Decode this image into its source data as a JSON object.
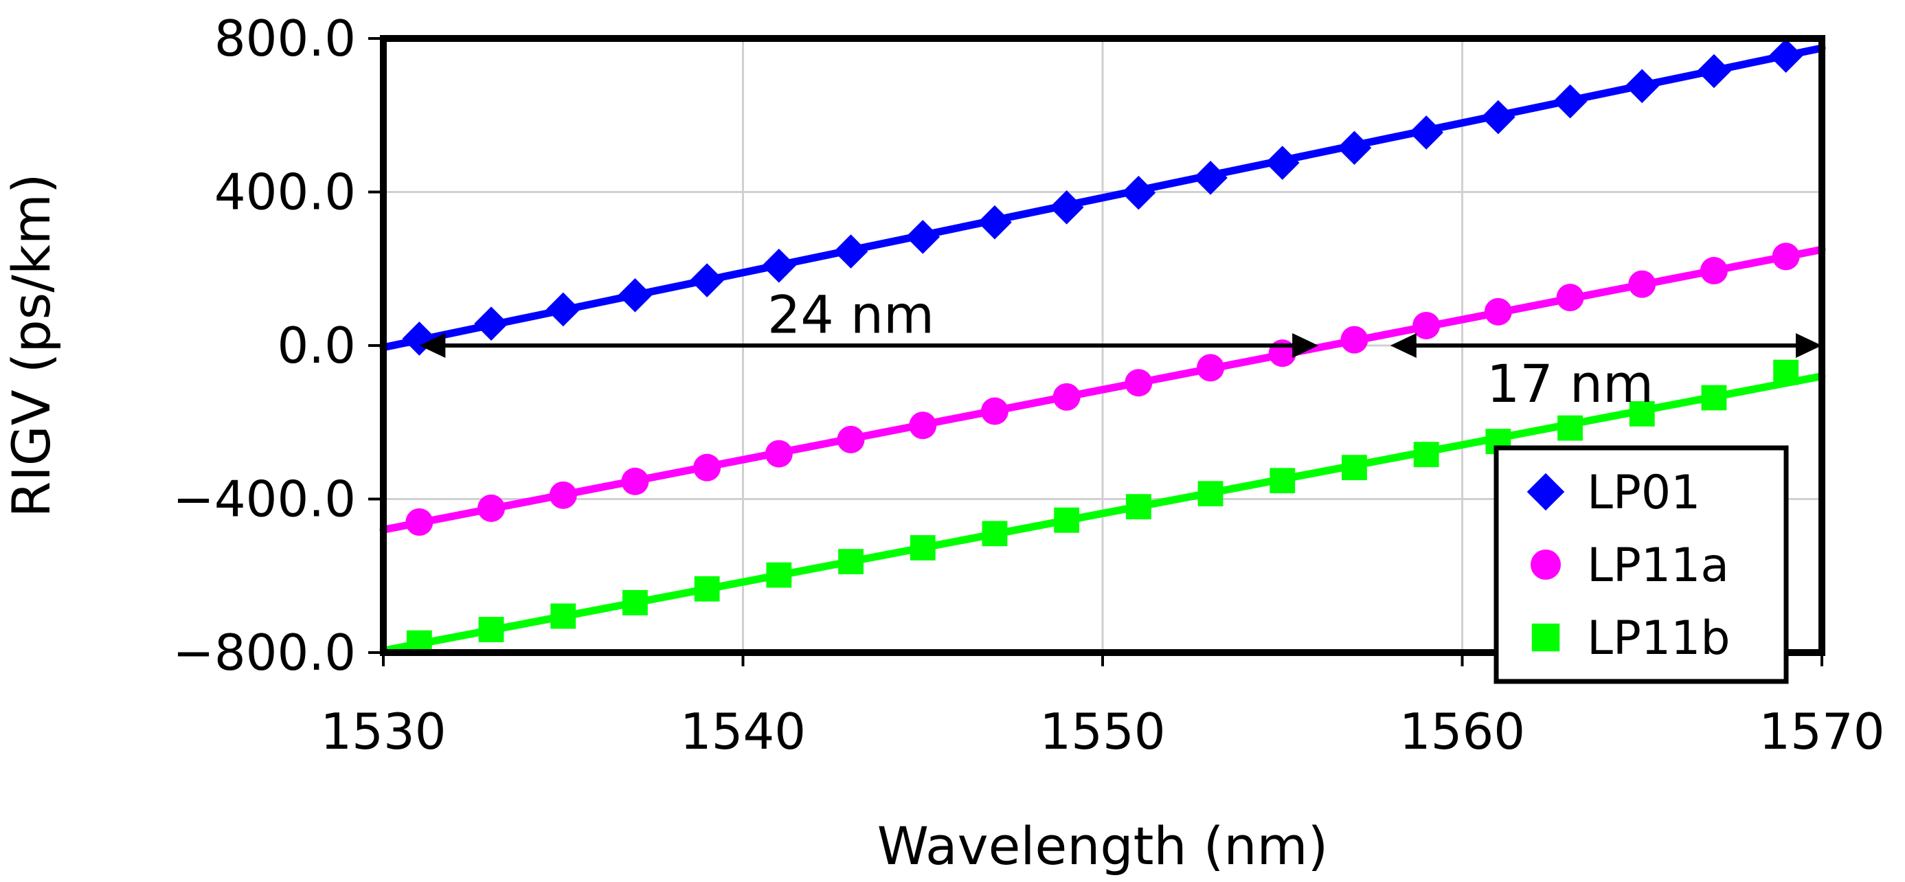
{
  "chart_data": {
    "type": "line",
    "title": "",
    "xlabel": "Wavelength  (nm)",
    "ylabel": "RIGV (ps/km)",
    "xlim": [
      1530,
      1570
    ],
    "ylim": [
      -800,
      800
    ],
    "xticks": [
      1530,
      1540,
      1550,
      1560,
      1570
    ],
    "xtick_labels": [
      "1530",
      "1540",
      "1550",
      "1560",
      "1570"
    ],
    "yticks": [
      800,
      400,
      0,
      -400,
      -800
    ],
    "ytick_labels": [
      "800.0",
      "400.0",
      "0.0",
      "−400.0",
      "−800.0"
    ],
    "grid": true,
    "legend_position": "bottom-right",
    "x": [
      1531,
      1533,
      1535,
      1537,
      1539,
      1541,
      1543,
      1545,
      1547,
      1549,
      1551,
      1553,
      1555,
      1557,
      1559,
      1561,
      1563,
      1565,
      1567,
      1569
    ],
    "series": [
      {
        "name": "LP01",
        "color": "#0000ff",
        "marker": "diamond",
        "line_range": [
          1530,
          1570
        ],
        "line_values": [
          -5,
          775
        ],
        "values": [
          18,
          57,
          94,
          131,
          170,
          208,
          245,
          283,
          321,
          360,
          398,
          437,
          476,
          515,
          555,
          595,
          636,
          676,
          715,
          755
        ]
      },
      {
        "name": "LP11a",
        "color": "#ff00ff",
        "marker": "circle",
        "line_range": [
          1530,
          1570
        ],
        "line_values": [
          -480,
          250
        ],
        "values": [
          -460,
          -424,
          -390,
          -354,
          -318,
          -282,
          -245,
          -208,
          -171,
          -134,
          -97,
          -58,
          -20,
          15,
          52,
          88,
          125,
          160,
          195,
          232
        ]
      },
      {
        "name": "LP11b",
        "color": "#00ff00",
        "marker": "square",
        "line_range": [
          1530,
          1570
        ],
        "line_values": [
          -795,
          -80
        ],
        "values": [
          -775,
          -740,
          -705,
          -670,
          -634,
          -598,
          -563,
          -527,
          -490,
          -455,
          -420,
          -386,
          -352,
          -318,
          -284,
          -250,
          -215,
          -178,
          -136,
          -70
        ]
      }
    ],
    "annotations": [
      {
        "text": "24 nm",
        "arrow_from": 1531,
        "arrow_to": 1556,
        "arrow_y": 0,
        "label_x": 1543,
        "label_y": 80
      },
      {
        "text": "17 nm",
        "arrow_from": 1558,
        "arrow_to": 1570,
        "arrow_y": 0,
        "label_x": 1563,
        "label_y": -100
      }
    ]
  }
}
